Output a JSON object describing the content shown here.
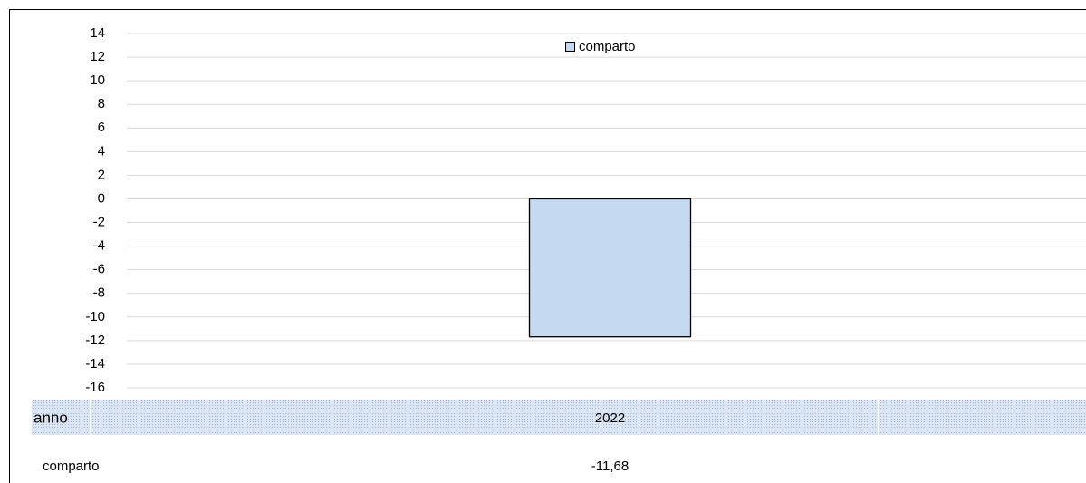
{
  "chart_data": {
    "type": "bar",
    "categories": [
      "2022"
    ],
    "x_label": "anno",
    "series": [
      {
        "name": "comparto",
        "color": "#c5d9f1",
        "values": [
          -11.68
        ],
        "value_labels": [
          "-11,68"
        ]
      }
    ],
    "ylim": [
      -16,
      14
    ],
    "yticks": [
      14,
      12,
      10,
      8,
      6,
      4,
      2,
      0,
      -2,
      -4,
      -6,
      -8,
      -10,
      -12,
      -14,
      -16
    ],
    "grid": true
  }
}
